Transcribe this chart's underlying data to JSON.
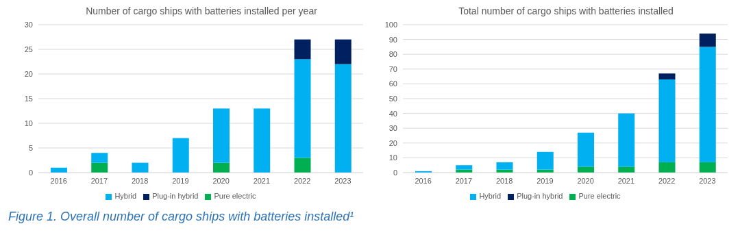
{
  "chart_data": [
    {
      "type": "bar",
      "title": "Number of cargo ships with batteries installed per year",
      "stacked": true,
      "categories": [
        "2016",
        "2017",
        "2018",
        "2019",
        "2020",
        "2021",
        "2022",
        "2023"
      ],
      "series": [
        {
          "name": "Pure electric",
          "color": "#00b050",
          "values": [
            0,
            2,
            0,
            0,
            2,
            0,
            3,
            0
          ]
        },
        {
          "name": "Hybrid",
          "color": "#00b0f0",
          "values": [
            1,
            2,
            2,
            7,
            11,
            13,
            20,
            22
          ]
        },
        {
          "name": "Plug-in hybrid",
          "color": "#002060",
          "values": [
            0,
            0,
            0,
            0,
            0,
            0,
            4,
            5
          ]
        }
      ],
      "ylim": [
        0,
        30
      ],
      "yticks": [
        0,
        5,
        10,
        15,
        20,
        25,
        30
      ],
      "grid": "y",
      "legend": "bottom",
      "annotations": [
        "Figure 1. Overall number of cargo ships with batteries installed¹"
      ]
    },
    {
      "type": "bar",
      "title": "Total number of cargo ships with batteries installed",
      "stacked": true,
      "categories": [
        "2016",
        "2017",
        "2018",
        "2019",
        "2020",
        "2021",
        "2022",
        "2023"
      ],
      "series": [
        {
          "name": "Pure electric",
          "color": "#00b050",
          "values": [
            0,
            2,
            2,
            2,
            4,
            4,
            7,
            7
          ]
        },
        {
          "name": "Hybrid",
          "color": "#00b0f0",
          "values": [
            1,
            3,
            5,
            12,
            23,
            36,
            56,
            78
          ]
        },
        {
          "name": "Plug-in hybrid",
          "color": "#002060",
          "values": [
            0,
            0,
            0,
            0,
            0,
            0,
            4,
            9
          ]
        }
      ],
      "ylim": [
        0,
        100
      ],
      "yticks": [
        0,
        10,
        20,
        30,
        40,
        50,
        60,
        70,
        80,
        90,
        100
      ],
      "grid": "y",
      "legend": "bottom"
    }
  ]
}
